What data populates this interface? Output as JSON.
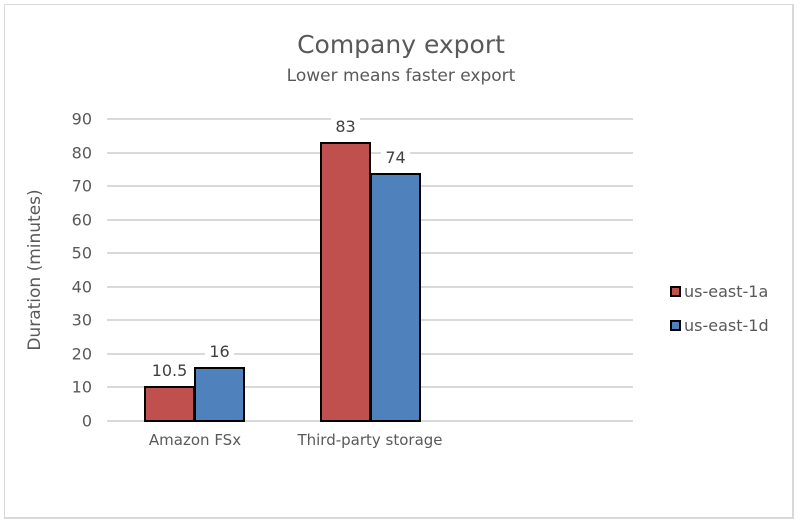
{
  "chart_data": {
    "type": "bar",
    "title": "Company export",
    "subtitle": "Lower means faster export",
    "xlabel": "",
    "ylabel": "Duration (minutes)",
    "categories": [
      "Amazon FSx",
      "Third-party storage"
    ],
    "series": [
      {
        "name": "us-east-1a",
        "color": "#c0504d",
        "values": [
          10.5,
          83
        ]
      },
      {
        "name": "us-east-1d",
        "color": "#4f81bd",
        "values": [
          16,
          74
        ]
      }
    ],
    "data_labels": [
      [
        "10.5",
        "83"
      ],
      [
        "16",
        "74"
      ]
    ],
    "ylim": [
      0,
      90
    ],
    "yticks": [
      "0",
      "10",
      "20",
      "30",
      "40",
      "50",
      "60",
      "70",
      "80",
      "90"
    ],
    "grid": true,
    "legend_position": "right"
  }
}
